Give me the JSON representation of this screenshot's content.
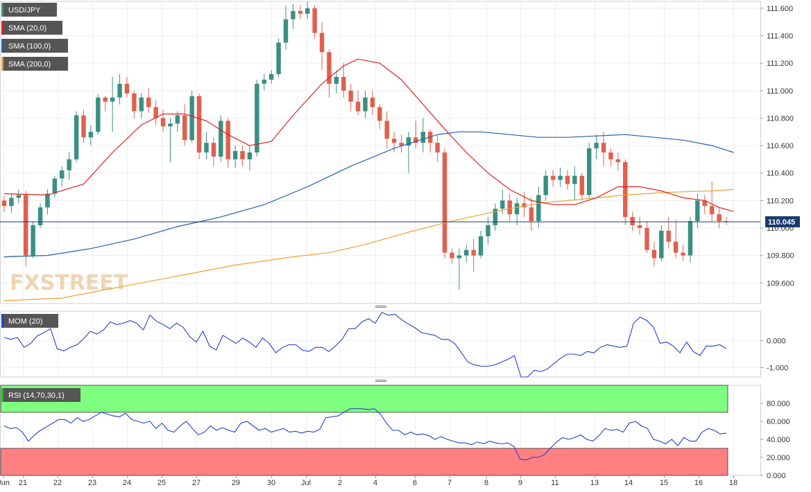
{
  "symbol": "USD/JPY",
  "watermark": "FXSTREET",
  "colors": {
    "bull": "#3a8f82",
    "bear": "#e0604e",
    "sma20": "#e02020",
    "sma100": "#2060b0",
    "sma200": "#f0a030",
    "mom": "#2040d0",
    "rsi": "#2040d0",
    "rsi_overbought_zone": "#7fff7f",
    "rsi_oversold_zone": "#ff8080",
    "legend_bg": "#555555",
    "price_line": "#1a3a6a"
  },
  "legends": {
    "price": [
      {
        "label": "USD/JPY",
        "color": "#3a8f82"
      },
      {
        "label": "SMA (20,0)",
        "color": "#e02020"
      },
      {
        "label": "SMA (100,0)",
        "color": "#2060b0"
      },
      {
        "label": "SMA (200,0)",
        "color": "#f0a030"
      }
    ],
    "mom": {
      "label": "MOM (20)",
      "color": "#2040d0"
    },
    "rsi": {
      "label": "RSI (14,70,30,1)",
      "color": "#20c020"
    }
  },
  "chart_data": [
    {
      "type": "candlestick",
      "panel": "price",
      "y_ticks": [
        "111.600",
        "111.400",
        "111.200",
        "111.000",
        "110.800",
        "110.600",
        "110.400",
        "110.200",
        "110.000",
        "109.800",
        "109.600"
      ],
      "ylim": [
        109.45,
        111.65
      ],
      "last_price": "110.045",
      "x_ticks": [
        "Jun",
        "21",
        "22",
        "23",
        "24",
        "25",
        "27",
        "29",
        "30",
        "Jul",
        "2",
        "4",
        "6",
        "7",
        "8",
        "9",
        "11",
        "13",
        "14",
        "15",
        "16",
        "18"
      ],
      "candles": [
        [
          110.2,
          110.23,
          110.12,
          110.16
        ],
        [
          110.16,
          110.25,
          110.11,
          110.22
        ],
        [
          110.22,
          110.28,
          110.18,
          110.24
        ],
        [
          110.24,
          110.27,
          109.72,
          109.8
        ],
        [
          109.8,
          110.05,
          109.78,
          110.02
        ],
        [
          110.02,
          110.18,
          110.0,
          110.15
        ],
        [
          110.15,
          110.28,
          110.1,
          110.25
        ],
        [
          110.25,
          110.38,
          110.22,
          110.36
        ],
        [
          110.36,
          110.45,
          110.3,
          110.42
        ],
        [
          110.42,
          110.55,
          110.35,
          110.5
        ],
        [
          110.5,
          110.85,
          110.48,
          110.82
        ],
        [
          110.82,
          110.86,
          110.62,
          110.66
        ],
        [
          110.66,
          110.75,
          110.6,
          110.7
        ],
        [
          110.7,
          110.98,
          110.68,
          110.95
        ],
        [
          110.95,
          110.96,
          110.85,
          110.92
        ],
        [
          110.92,
          111.1,
          110.7,
          110.95
        ],
        [
          110.95,
          111.12,
          110.9,
          111.05
        ],
        [
          111.05,
          111.1,
          110.95,
          110.98
        ],
        [
          110.98,
          111.0,
          110.8,
          110.85
        ],
        [
          110.85,
          110.98,
          110.8,
          110.95
        ],
        [
          110.95,
          111.02,
          110.84,
          110.88
        ],
        [
          110.88,
          110.93,
          110.75,
          110.8
        ],
        [
          110.8,
          110.86,
          110.7,
          110.74
        ],
        [
          110.74,
          110.8,
          110.48,
          110.76
        ],
        [
          110.76,
          110.85,
          110.7,
          110.82
        ],
        [
          110.82,
          110.9,
          110.6,
          110.64
        ],
        [
          110.64,
          111.0,
          110.62,
          110.96
        ],
        [
          110.96,
          110.98,
          110.5,
          110.55
        ],
        [
          110.55,
          110.7,
          110.5,
          110.62
        ],
        [
          110.62,
          110.66,
          110.45,
          110.52
        ],
        [
          110.52,
          110.82,
          110.48,
          110.78
        ],
        [
          110.78,
          110.8,
          110.44,
          110.5
        ],
        [
          110.5,
          110.6,
          110.44,
          110.56
        ],
        [
          110.56,
          110.6,
          110.45,
          110.5
        ],
        [
          110.5,
          110.6,
          110.42,
          110.55
        ],
        [
          110.55,
          111.08,
          110.52,
          111.05
        ],
        [
          111.05,
          111.12,
          111.0,
          111.08
        ],
        [
          111.08,
          111.15,
          111.05,
          111.12
        ],
        [
          111.12,
          111.38,
          111.1,
          111.35
        ],
        [
          111.35,
          111.62,
          111.3,
          111.52
        ],
        [
          111.52,
          111.63,
          111.45,
          111.58
        ],
        [
          111.58,
          111.62,
          111.52,
          111.56
        ],
        [
          111.56,
          111.65,
          111.52,
          111.6
        ],
        [
          111.6,
          111.62,
          111.38,
          111.42
        ],
        [
          111.42,
          111.5,
          111.15,
          111.28
        ],
        [
          111.28,
          111.3,
          110.95,
          111.05
        ],
        [
          111.05,
          111.15,
          110.98,
          111.1
        ],
        [
          111.1,
          111.2,
          110.95,
          111.0
        ],
        [
          111.0,
          111.05,
          110.85,
          110.92
        ],
        [
          110.92,
          111.0,
          110.82,
          110.85
        ],
        [
          110.85,
          111.0,
          110.8,
          110.95
        ],
        [
          110.95,
          111.0,
          110.82,
          110.88
        ],
        [
          110.88,
          110.9,
          110.72,
          110.78
        ],
        [
          110.78,
          110.85,
          110.58,
          110.65
        ],
        [
          110.65,
          110.7,
          110.55,
          110.62
        ],
        [
          110.62,
          110.68,
          110.55,
          110.6
        ],
        [
          110.6,
          110.7,
          110.4,
          110.66
        ],
        [
          110.66,
          110.78,
          110.58,
          110.62
        ],
        [
          110.62,
          110.8,
          110.55,
          110.7
        ],
        [
          110.7,
          110.72,
          110.55,
          110.62
        ],
        [
          110.62,
          110.68,
          110.48,
          110.55
        ],
        [
          110.55,
          110.58,
          109.78,
          109.82
        ],
        [
          109.82,
          109.85,
          109.74,
          109.78
        ],
        [
          109.78,
          109.85,
          109.55,
          109.8
        ],
        [
          109.8,
          109.88,
          109.75,
          109.84
        ],
        [
          109.84,
          109.92,
          109.68,
          109.8
        ],
        [
          109.8,
          109.98,
          109.78,
          109.94
        ],
        [
          109.94,
          110.08,
          109.88,
          110.02
        ],
        [
          110.02,
          110.18,
          109.98,
          110.14
        ],
        [
          110.14,
          110.28,
          110.1,
          110.2
        ],
        [
          110.2,
          110.25,
          110.05,
          110.1
        ],
        [
          110.1,
          110.22,
          110.02,
          110.18
        ],
        [
          110.18,
          110.26,
          110.08,
          110.15
        ],
        [
          110.15,
          110.22,
          109.98,
          110.05
        ],
        [
          110.05,
          110.3,
          110.0,
          110.24
        ],
        [
          110.24,
          110.42,
          110.2,
          110.38
        ],
        [
          110.38,
          110.42,
          110.3,
          110.35
        ],
        [
          110.35,
          110.44,
          110.3,
          110.38
        ],
        [
          110.38,
          110.42,
          110.28,
          110.32
        ],
        [
          110.32,
          110.45,
          110.2,
          110.38
        ],
        [
          110.38,
          110.4,
          110.2,
          110.24
        ],
        [
          110.24,
          110.62,
          110.22,
          110.58
        ],
        [
          110.58,
          110.68,
          110.5,
          110.62
        ],
        [
          110.62,
          110.7,
          110.45,
          110.55
        ],
        [
          110.55,
          110.58,
          110.45,
          110.5
        ],
        [
          110.5,
          110.55,
          110.42,
          110.48
        ],
        [
          110.48,
          110.5,
          110.02,
          110.08
        ],
        [
          110.08,
          110.12,
          109.98,
          110.02
        ],
        [
          110.02,
          110.08,
          109.95,
          110.0
        ],
        [
          110.0,
          110.05,
          109.82,
          109.84
        ],
        [
          109.84,
          109.9,
          109.72,
          109.78
        ],
        [
          109.78,
          110.02,
          109.76,
          109.98
        ],
        [
          109.98,
          110.08,
          109.85,
          109.9
        ],
        [
          109.9,
          110.06,
          109.78,
          109.82
        ],
        [
          109.82,
          109.88,
          109.76,
          109.8
        ],
        [
          109.8,
          110.08,
          109.75,
          110.05
        ],
        [
          110.05,
          110.25,
          110.0,
          110.2
        ],
        [
          110.2,
          110.24,
          110.1,
          110.16
        ],
        [
          110.16,
          110.34,
          110.05,
          110.1
        ],
        [
          110.1,
          110.15,
          110.0,
          110.05
        ],
        [
          110.05,
          110.08,
          110.02,
          110.045
        ]
      ],
      "sma20": [
        [
          0,
          110.25
        ],
        [
          6,
          110.24
        ],
        [
          11,
          110.32
        ],
        [
          15,
          110.55
        ],
        [
          19,
          110.75
        ],
        [
          22,
          110.83
        ],
        [
          25,
          110.83
        ],
        [
          28,
          110.78
        ],
        [
          31,
          110.68
        ],
        [
          34,
          110.6
        ],
        [
          37,
          110.63
        ],
        [
          40,
          110.82
        ],
        [
          44,
          111.05
        ],
        [
          47,
          111.18
        ],
        [
          49,
          111.23
        ],
        [
          52,
          111.2
        ],
        [
          55,
          111.08
        ],
        [
          58,
          110.9
        ],
        [
          61,
          110.72
        ],
        [
          64,
          110.55
        ],
        [
          67,
          110.4
        ],
        [
          70,
          110.28
        ],
        [
          73,
          110.2
        ],
        [
          76,
          110.17
        ],
        [
          79,
          110.17
        ],
        [
          82,
          110.22
        ],
        [
          85,
          110.3
        ],
        [
          88,
          110.3
        ],
        [
          91,
          110.27
        ],
        [
          94,
          110.22
        ],
        [
          97,
          110.2
        ],
        [
          99,
          110.15
        ],
        [
          101,
          110.12
        ]
      ],
      "sma100": [
        [
          0,
          109.79
        ],
        [
          6,
          109.8
        ],
        [
          12,
          109.85
        ],
        [
          18,
          109.92
        ],
        [
          24,
          110.01
        ],
        [
          30,
          110.08
        ],
        [
          36,
          110.17
        ],
        [
          42,
          110.3
        ],
        [
          48,
          110.45
        ],
        [
          54,
          110.58
        ],
        [
          60,
          110.68
        ],
        [
          63,
          110.7
        ],
        [
          66,
          110.7
        ],
        [
          70,
          110.68
        ],
        [
          74,
          110.66
        ],
        [
          78,
          110.66
        ],
        [
          82,
          110.67
        ],
        [
          86,
          110.68
        ],
        [
          90,
          110.66
        ],
        [
          94,
          110.64
        ],
        [
          98,
          110.6
        ],
        [
          101,
          110.55
        ]
      ],
      "sma200": [
        [
          0,
          109.47
        ],
        [
          8,
          109.49
        ],
        [
          16,
          109.57
        ],
        [
          24,
          109.65
        ],
        [
          32,
          109.73
        ],
        [
          40,
          109.79
        ],
        [
          45,
          109.82
        ],
        [
          50,
          109.88
        ],
        [
          56,
          109.97
        ],
        [
          62,
          110.05
        ],
        [
          68,
          110.12
        ],
        [
          74,
          110.18
        ],
        [
          80,
          110.21
        ],
        [
          86,
          110.24
        ],
        [
          92,
          110.26
        ],
        [
          98,
          110.27
        ],
        [
          101,
          110.28
        ]
      ]
    },
    {
      "type": "line",
      "panel": "momentum",
      "name": "MOM (20)",
      "y_ticks": [
        "0.000",
        "-1.000"
      ],
      "ylim": [
        -1.35,
        1.1
      ],
      "values": [
        0.12,
        0.05,
        0.12,
        -0.25,
        -0.1,
        0.18,
        0.3,
        0.45,
        -0.3,
        -0.38,
        -0.25,
        -0.15,
        0.08,
        0.35,
        0.25,
        0.4,
        0.7,
        0.6,
        0.65,
        0.75,
        0.65,
        0.4,
        0.95,
        0.72,
        0.6,
        0.45,
        0.65,
        0.5,
        0.15,
        -0.05,
        0.35,
        -0.2,
        -0.35,
        0.2,
        0.05,
        -0.1,
        0.1,
        -0.05,
        -0.25,
        0.1,
        -0.1,
        -0.45,
        -0.25,
        -0.15,
        -0.15,
        -0.35,
        -0.4,
        -0.25,
        -0.25,
        -0.4,
        -0.2,
        0.05,
        0.45,
        0.45,
        0.7,
        0.82,
        0.65,
        1.05,
        0.95,
        0.98,
        0.78,
        0.62,
        0.48,
        0.3,
        0.25,
        0.2,
        0.05,
        0.05,
        -0.1,
        -0.45,
        -0.8,
        -0.9,
        -0.95,
        -0.95,
        -0.9,
        -0.8,
        -0.7,
        -0.55,
        -1.35,
        -1.35,
        -1.1,
        -1.15,
        -1.05,
        -0.85,
        -0.65,
        -0.5,
        -0.5,
        -0.55,
        -0.4,
        -0.45,
        -0.25,
        -0.15,
        -0.2,
        -0.25,
        -0.2,
        0.65,
        0.88,
        0.75,
        0.5,
        -0.1,
        -0.05,
        -0.2,
        -0.45,
        -0.05,
        -0.4,
        -0.55,
        -0.2,
        -0.2,
        -0.15,
        -0.3
      ]
    },
    {
      "type": "line",
      "panel": "rsi",
      "name": "RSI (14,70,30,1)",
      "y_ticks": [
        "80.000",
        "60.000",
        "40.000",
        "20.000",
        "0.000"
      ],
      "ylim": [
        0,
        100
      ],
      "bands": {
        "overbought": 70,
        "oversold": 30,
        "upper": 100
      },
      "values": [
        55,
        52,
        53,
        48,
        38,
        45,
        50,
        54,
        58,
        62,
        62,
        58,
        64,
        60,
        62,
        66,
        70,
        68,
        66,
        65,
        69,
        62,
        60,
        58,
        60,
        52,
        58,
        50,
        48,
        55,
        60,
        52,
        45,
        48,
        55,
        50,
        53,
        50,
        48,
        58,
        60,
        55,
        50,
        52,
        48,
        50,
        52,
        48,
        49,
        47,
        49,
        48,
        51,
        64,
        65,
        66,
        70,
        74,
        74,
        74,
        73,
        74,
        68,
        58,
        50,
        50,
        45,
        48,
        45,
        46,
        44,
        40,
        43,
        40,
        38,
        36,
        36,
        34,
        37,
        35,
        38,
        36,
        35,
        36,
        32,
        18,
        17,
        20,
        20,
        23,
        30,
        37,
        42,
        40,
        42,
        45,
        40,
        38,
        44,
        52,
        50,
        51,
        48,
        58,
        60,
        55,
        52,
        40,
        38,
        35,
        40,
        33,
        42,
        38,
        38,
        48,
        52,
        50,
        46,
        47
      ]
    }
  ]
}
